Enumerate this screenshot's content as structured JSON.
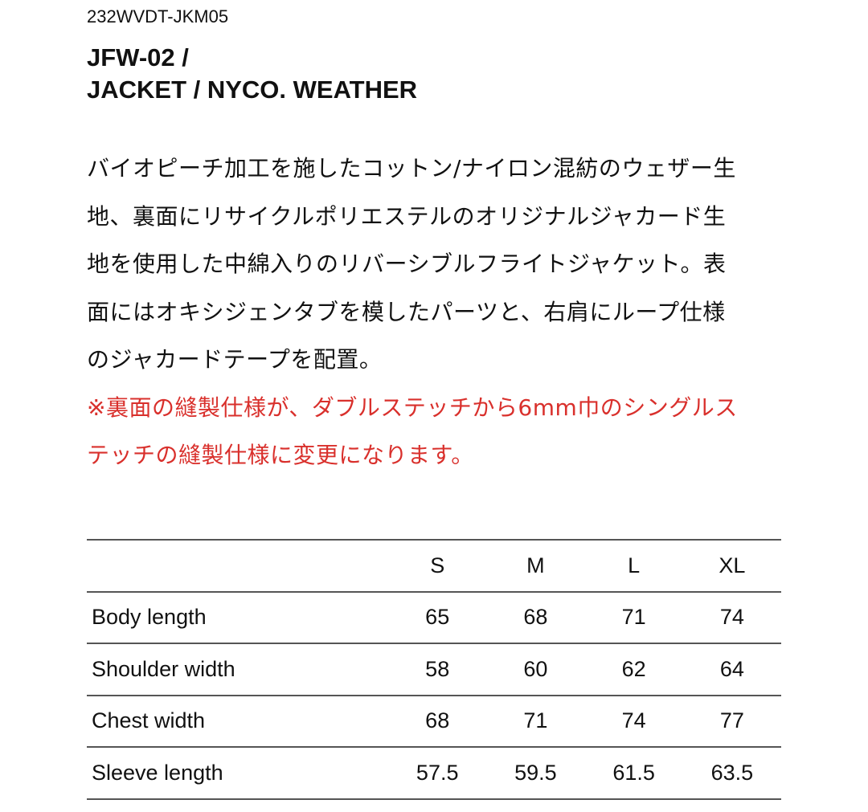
{
  "product_code": "232WVDT-JKM05",
  "title_lines": [
    "JFW-02 /",
    "JACKET / NYCO. WEATHER"
  ],
  "description_lines": [
    "バイオピーチ加工を施したコットン/ナイロン混紡のウェザー生",
    "地、裏面にリサイクルポリエステルのオリジナルジャカード生",
    "地を使用した中綿入りのリバーシブルフライトジャケット。表",
    "面にはオキシジェンタブを模したパーツと、右肩にループ仕様",
    "のジャカードテープを配置。"
  ],
  "notice_lines": [
    "※裏面の縫製仕様が、ダブルステッチから6mm巾のシングルス",
    "テッチの縫製仕様に変更になります。"
  ],
  "notice_color": "#d9302c",
  "size_table": {
    "headers": [
      "",
      "S",
      "M",
      "L",
      "XL"
    ],
    "rows": [
      [
        "Body length",
        "65",
        "68",
        "71",
        "74"
      ],
      [
        "Shoulder width",
        "58",
        "60",
        "62",
        "64"
      ],
      [
        "Chest width",
        "68",
        "71",
        "74",
        "77"
      ],
      [
        "Sleeve length",
        "57.5",
        "59.5",
        "61.5",
        "63.5"
      ]
    ]
  }
}
